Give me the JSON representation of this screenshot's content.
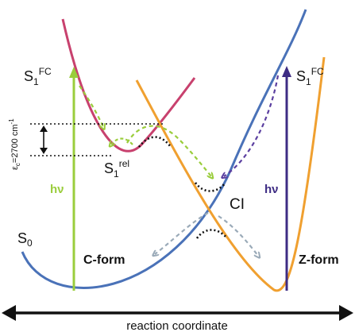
{
  "labels": {
    "s1fc_left_main": "S",
    "s1fc_left_sub": "1",
    "s1fc_left_sup": "FC",
    "s1fc_right_main": "S",
    "s1fc_right_sub": "1",
    "s1fc_right_sup": "FC",
    "s1rel_main": "S",
    "s1rel_sub": "1",
    "s1rel_sup": "rel",
    "s0_main": "S",
    "s0_sub": "0",
    "hv_left": "hν",
    "hv_right": "hν",
    "ci": "CI",
    "c_form": "C-form",
    "z_form": "Z-form",
    "barrier_main": "ε",
    "barrier_sub": "c",
    "barrier_value": "=2700 cm",
    "barrier_sup": "-1",
    "x_axis": "reaction coordinate"
  },
  "colors": {
    "s0_curve": "#4a72b8",
    "s1_left_curve": "#c8416e",
    "s1_right_curve": "#f0a030",
    "excitation_left": "#9acd3c",
    "excitation_right": "#3e2c84",
    "green_path": "#9acd3c",
    "purple_path": "#5b3fa0",
    "gray_path": "#9aaab8",
    "axis": "#111111"
  }
}
